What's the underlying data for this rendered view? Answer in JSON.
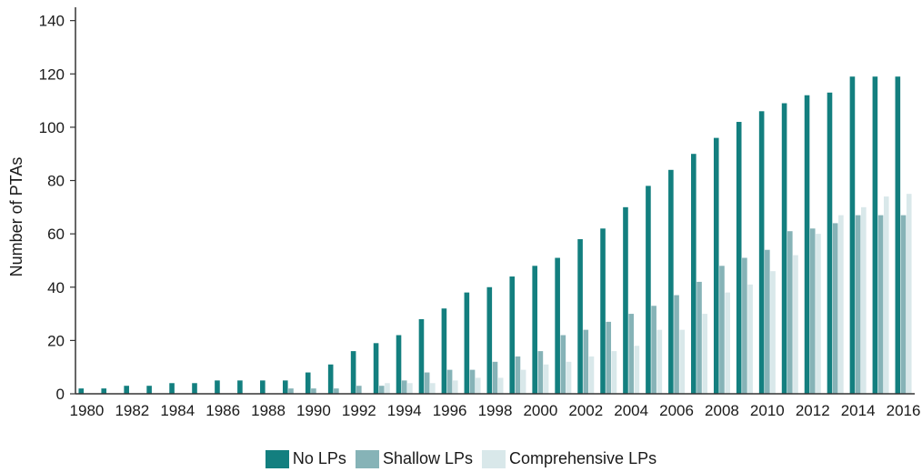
{
  "chart_data": {
    "type": "bar",
    "ylabel": "Number of PTAs",
    "xlabel": "",
    "ylim": [
      0,
      145
    ],
    "yticks": [
      0,
      20,
      40,
      60,
      80,
      100,
      120,
      140
    ],
    "grid": false,
    "legend_position": "bottom-center",
    "categories": [
      "1980",
      "1981",
      "1982",
      "1983",
      "1984",
      "1985",
      "1986",
      "1987",
      "1988",
      "1989",
      "1990",
      "1991",
      "1992",
      "1993",
      "1994",
      "1995",
      "1996",
      "1997",
      "1998",
      "1999",
      "2000",
      "2001",
      "2002",
      "2003",
      "2004",
      "2005",
      "2006",
      "2007",
      "2008",
      "2009",
      "2010",
      "2011",
      "2012",
      "2013",
      "2014",
      "2015",
      "2016"
    ],
    "tick_labels": [
      "1980",
      "1982",
      "1984",
      "1986",
      "1988",
      "1990",
      "1992",
      "1994",
      "1996",
      "1998",
      "2000",
      "2002",
      "2004",
      "2006",
      "2008",
      "2010",
      "2012",
      "2014",
      "2016"
    ],
    "series": [
      {
        "name": "No LPs",
        "color": "#137f7f",
        "values": [
          2,
          2,
          3,
          3,
          4,
          4,
          5,
          5,
          5,
          5,
          8,
          11,
          16,
          19,
          22,
          28,
          32,
          38,
          40,
          44,
          48,
          51,
          58,
          62,
          70,
          78,
          84,
          90,
          96,
          102,
          106,
          109,
          112,
          113,
          119,
          119,
          119
        ]
      },
      {
        "name": "Shallow LPs",
        "color": "#86b3b7",
        "values": [
          0,
          0,
          0,
          0,
          0,
          0,
          0,
          0,
          0,
          2,
          2,
          2,
          3,
          3,
          5,
          8,
          9,
          9,
          12,
          14,
          16,
          22,
          24,
          27,
          30,
          33,
          37,
          42,
          48,
          51,
          54,
          61,
          62,
          64,
          67,
          67,
          67
        ]
      },
      {
        "name": "Comprehensive LPs",
        "color": "#d9e8ea",
        "values": [
          0,
          0,
          0,
          0,
          0,
          0,
          0,
          0,
          0,
          0,
          0,
          0,
          0,
          4,
          4,
          4,
          5,
          6,
          6,
          9,
          11,
          12,
          14,
          16,
          18,
          24,
          24,
          30,
          38,
          41,
          46,
          52,
          60,
          67,
          70,
          74,
          75
        ]
      }
    ]
  }
}
